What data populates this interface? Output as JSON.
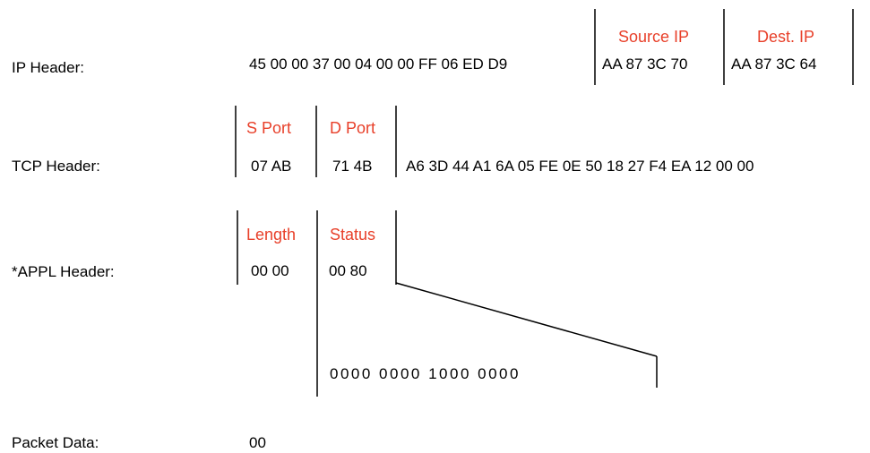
{
  "colors": {
    "text": "#000000",
    "field_label": "#e8402a"
  },
  "ip_header": {
    "label": "IP Header:",
    "bytes": "45 00 00 37 00 04 00 00 FF 06 ED D9",
    "source_ip_label": "Source IP",
    "source_ip": "AA 87 3C 70",
    "dest_ip_label": "Dest. IP",
    "dest_ip": "AA 87 3C 64"
  },
  "tcp_header": {
    "label": "TCP Header:",
    "s_port_label": "S Port",
    "s_port": "07 AB",
    "d_port_label": "D Port",
    "d_port": "71 4B",
    "rest": "A6 3D 44 A1 6A 05 FE 0E 50 18 27 F4 EA 12 00 00"
  },
  "appl_header": {
    "label": "*APPL  Header:",
    "length_label": "Length",
    "length": "00 00",
    "status_label": "Status",
    "status": "00 80",
    "status_bits": "0000   0000   1000   0000"
  },
  "packet_data": {
    "label": "Packet Data:",
    "value": "00"
  }
}
